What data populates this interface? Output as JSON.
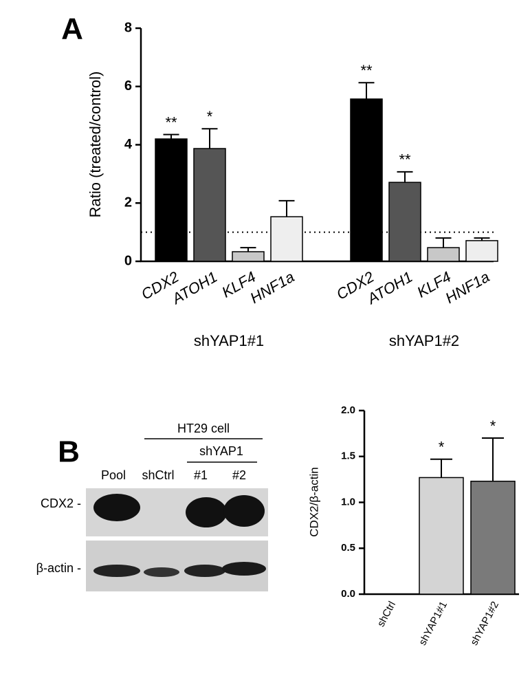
{
  "panel_labels": [
    "A",
    "B"
  ],
  "chart_data": [
    {
      "type": "bar",
      "y_label": "Ratio (treated/control)",
      "categories": [
        "CDX2",
        "ATOH1",
        "KLF4",
        "HNF1a",
        "CDX2",
        "ATOH1",
        "KLF4",
        "HNF1a"
      ],
      "groups": [
        "shYAP1#1",
        "shYAP1#2"
      ],
      "values": [
        4.2,
        3.87,
        0.33,
        1.53,
        5.57,
        2.71,
        0.47,
        0.71
      ],
      "errors": [
        0.15,
        0.68,
        0.14,
        0.55,
        0.56,
        0.36,
        0.33,
        0.09
      ],
      "annotations": [
        "**",
        "*",
        null,
        null,
        "**",
        "**",
        null,
        null
      ],
      "colors": [
        "#000000",
        "#555555",
        "#c8c8c8",
        "#eeeeee",
        "#000000",
        "#555555",
        "#c8c8c8",
        "#eeeeee"
      ],
      "reference_line": 1,
      "ylim": [
        0,
        8
      ],
      "yticks": [
        0,
        2,
        4,
        6,
        8
      ]
    },
    {
      "type": "bar",
      "y_label": "CDX2/β-actin",
      "categories": [
        "shCtrl",
        "shYAP1#1",
        "shYAP1#2"
      ],
      "values": [
        0,
        1.27,
        1.23
      ],
      "errors": [
        0,
        0.2,
        0.47
      ],
      "annotations": [
        null,
        "*",
        "*"
      ],
      "colors": [
        "#ffffff",
        "#d4d4d4",
        "#7a7a7a"
      ],
      "ylim": [
        0,
        2
      ],
      "yticks": [
        {
          "value": 0,
          "label": "0.0"
        },
        {
          "value": 0.5,
          "label": "0.5"
        },
        {
          "value": 1,
          "label": "1.0"
        },
        {
          "value": 1.5,
          "label": "1.5"
        },
        {
          "value": 2,
          "label": "2.0"
        }
      ]
    }
  ],
  "blot": {
    "cell_label": "HT29 cell",
    "sh_label": "shYAP1",
    "lanes": [
      "Pool",
      "shCtrl",
      "#1",
      "#2"
    ],
    "rows": [
      "CDX2 -",
      "β-actin -"
    ]
  }
}
